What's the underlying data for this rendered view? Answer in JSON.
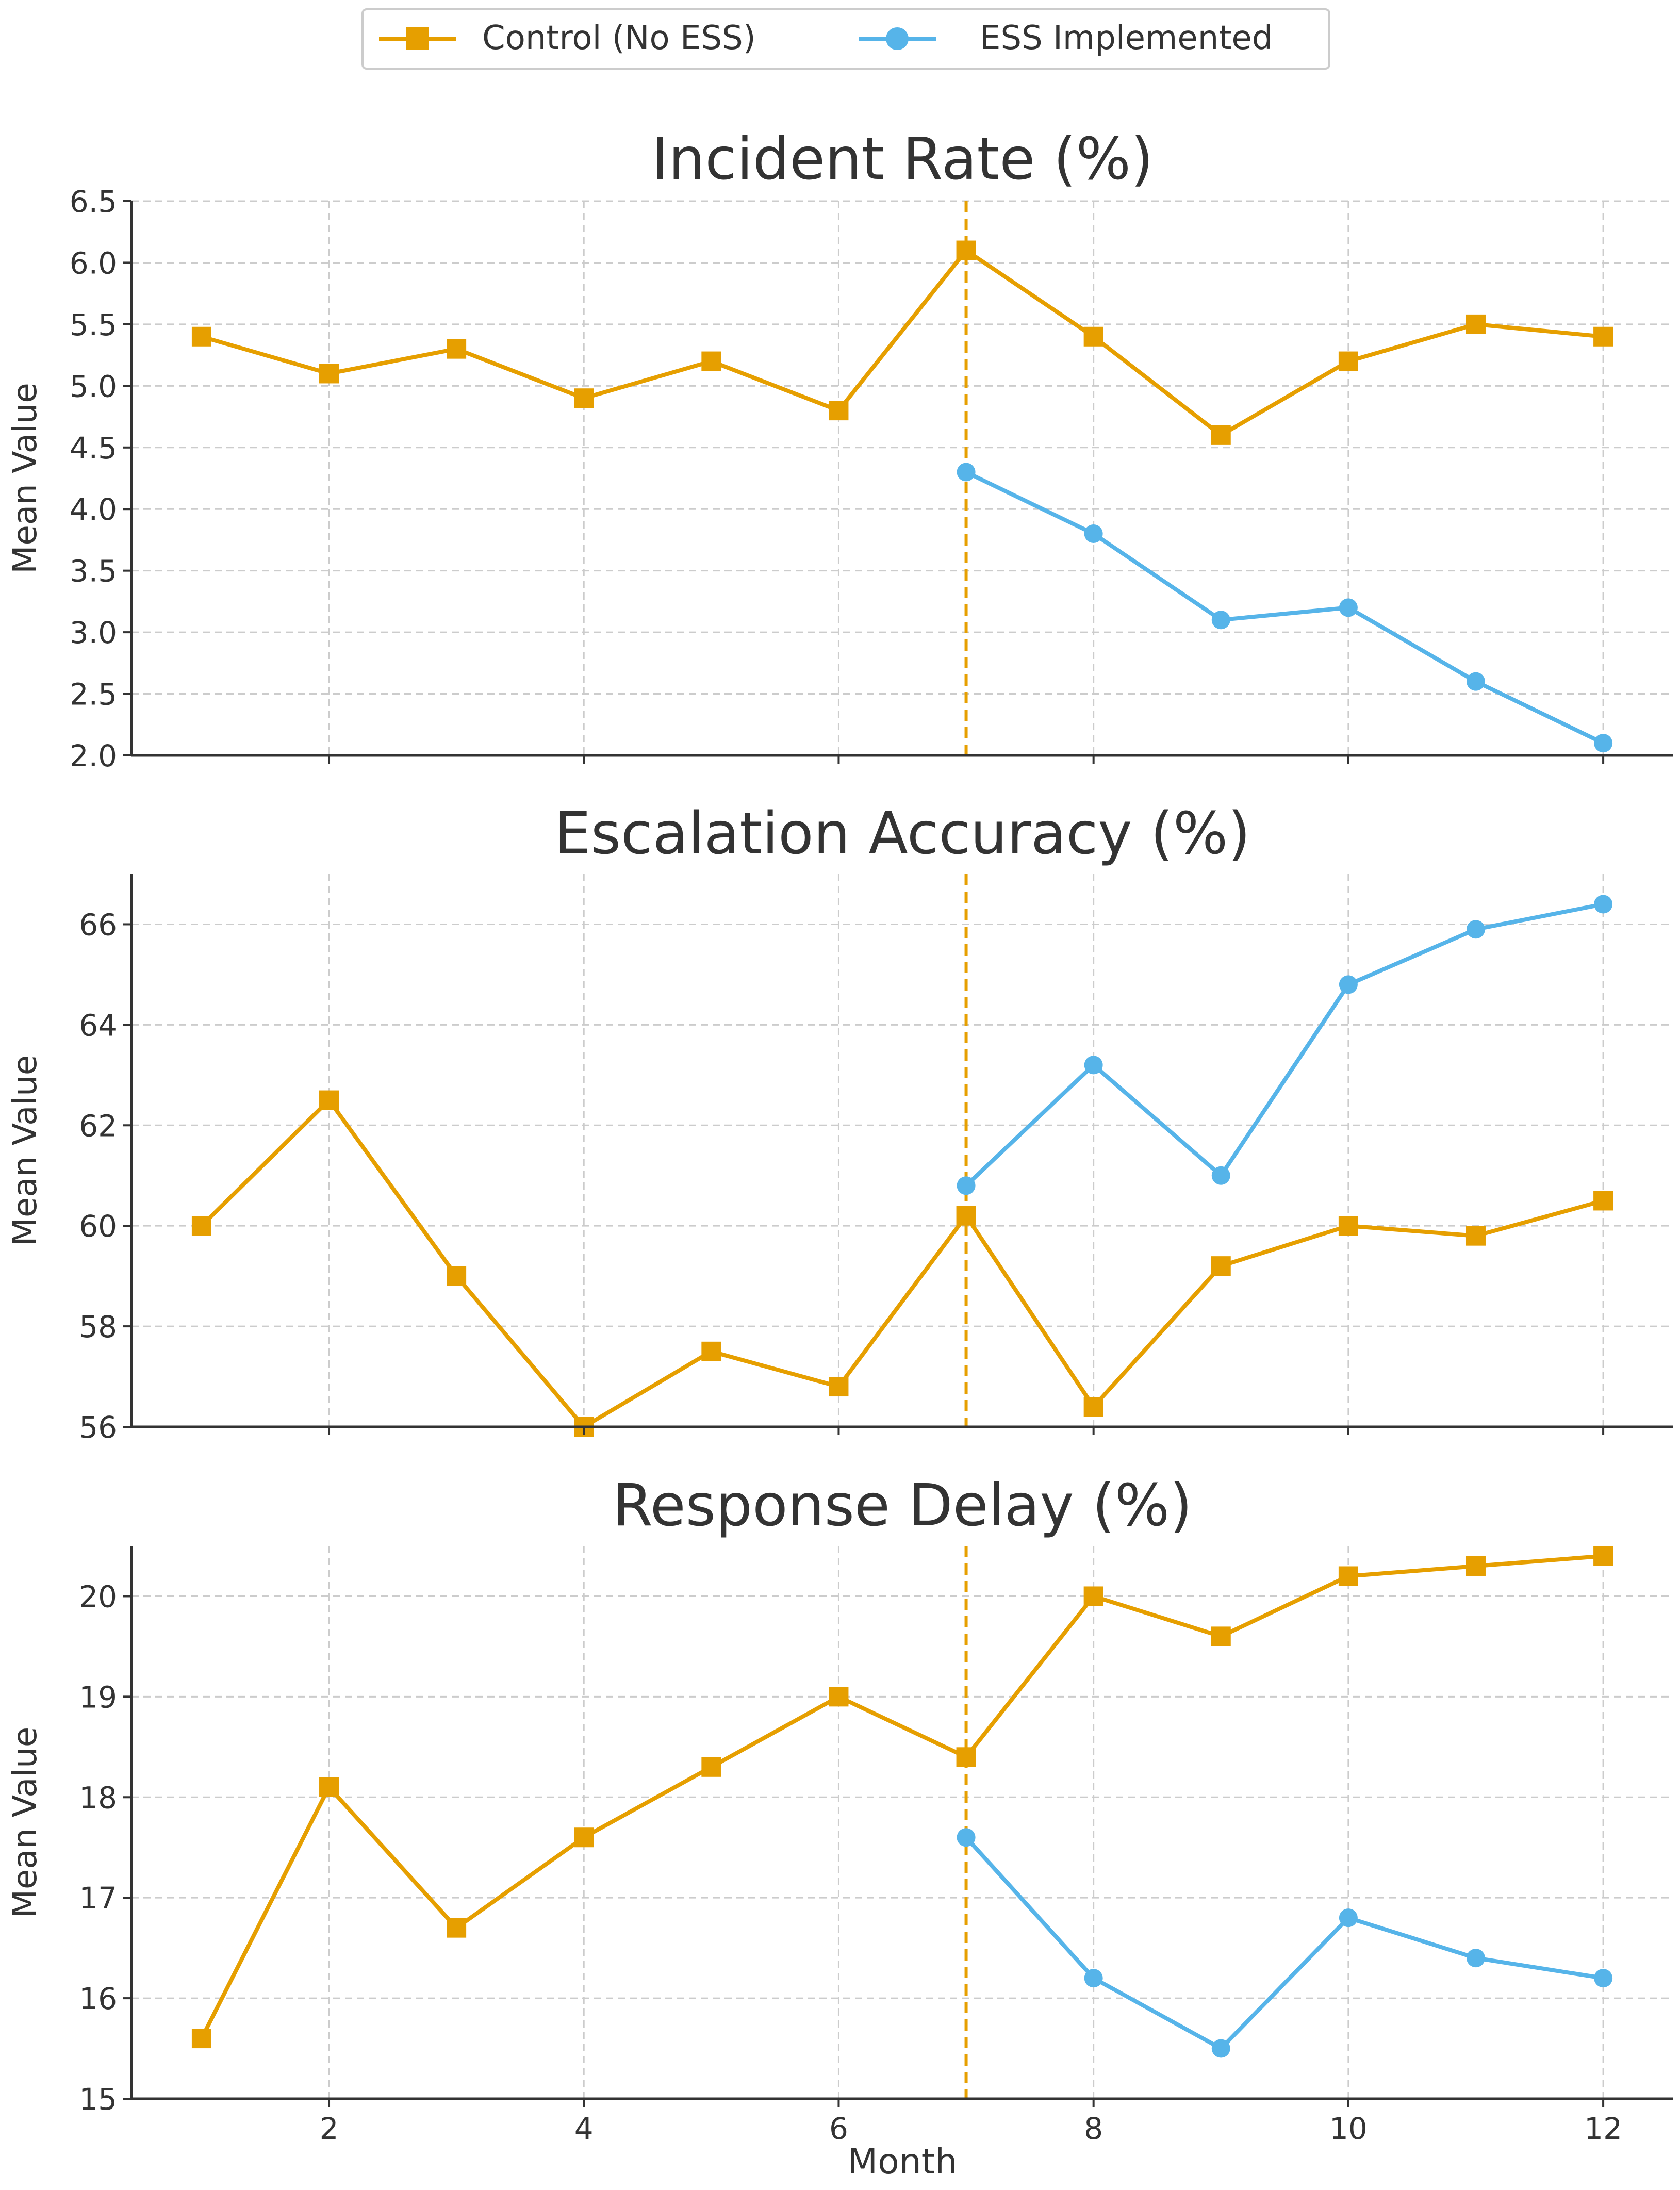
{
  "legend": {
    "items": [
      {
        "label": "Control (No ESS)",
        "series_key": "control"
      },
      {
        "label": "ESS Implemented",
        "series_key": "ess"
      }
    ]
  },
  "colors": {
    "control": "#E69F00",
    "ess": "#56B4E9",
    "vline": "#E69F00",
    "grid": "#cccccc",
    "axis": "#333333"
  },
  "chart_data": [
    {
      "type": "line",
      "title": "Incident Rate (%)",
      "xlabel": "",
      "ylabel": "Mean Value",
      "xlim": [
        0.45,
        12.55
      ],
      "ylim": [
        2.0,
        6.5
      ],
      "yticks": [
        2.0,
        2.5,
        3.0,
        3.5,
        4.0,
        4.5,
        5.0,
        5.5,
        6.0,
        6.5
      ],
      "ytick_labels": [
        "2.0",
        "2.5",
        "3.0",
        "3.5",
        "4.0",
        "4.5",
        "5.0",
        "5.5",
        "6.0",
        "6.5"
      ],
      "xticks": [
        2,
        4,
        6,
        8,
        10,
        12
      ],
      "xtick_labels": [],
      "grid": true,
      "vline_x": 7,
      "series": [
        {
          "key": "control",
          "name": "Control (No ESS)",
          "marker": "square",
          "x": [
            1,
            2,
            3,
            4,
            5,
            6,
            7,
            8,
            9,
            10,
            11,
            12
          ],
          "y": [
            5.4,
            5.1,
            5.3,
            4.9,
            5.2,
            4.8,
            6.1,
            5.4,
            4.6,
            5.2,
            5.5,
            5.4
          ]
        },
        {
          "key": "ess",
          "name": "ESS Implemented",
          "marker": "circle",
          "x": [
            7,
            8,
            9,
            10,
            11,
            12
          ],
          "y": [
            4.3,
            3.8,
            3.1,
            3.2,
            2.6,
            2.1
          ]
        }
      ]
    },
    {
      "type": "line",
      "title": "Escalation Accuracy (%)",
      "xlabel": "",
      "ylabel": "Mean Value",
      "xlim": [
        0.45,
        12.55
      ],
      "ylim": [
        56,
        67
      ],
      "yticks": [
        56,
        58,
        60,
        62,
        64,
        66
      ],
      "ytick_labels": [
        "56",
        "58",
        "60",
        "62",
        "64",
        "66"
      ],
      "xticks": [
        2,
        4,
        6,
        8,
        10,
        12
      ],
      "xtick_labels": [],
      "grid": true,
      "vline_x": 7,
      "series": [
        {
          "key": "control",
          "name": "Control (No ESS)",
          "marker": "square",
          "x": [
            1,
            2,
            3,
            4,
            5,
            6,
            7,
            8,
            9,
            10,
            11,
            12
          ],
          "y": [
            60.0,
            62.5,
            59.0,
            56.0,
            57.5,
            56.8,
            60.2,
            56.4,
            59.2,
            60.0,
            59.8,
            60.5
          ]
        },
        {
          "key": "ess",
          "name": "ESS Implemented",
          "marker": "circle",
          "x": [
            7,
            8,
            9,
            10,
            11,
            12
          ],
          "y": [
            60.8,
            63.2,
            61.0,
            64.8,
            65.9,
            66.4
          ]
        }
      ]
    },
    {
      "type": "line",
      "title": "Response Delay (%)",
      "xlabel": "Month",
      "ylabel": "Mean Value",
      "xlim": [
        0.45,
        12.55
      ],
      "ylim": [
        15,
        20.5
      ],
      "yticks": [
        15,
        16,
        17,
        18,
        19,
        20
      ],
      "ytick_labels": [
        "15",
        "16",
        "17",
        "18",
        "19",
        "20"
      ],
      "xticks": [
        2,
        4,
        6,
        8,
        10,
        12
      ],
      "xtick_labels": [
        "2",
        "4",
        "6",
        "8",
        "10",
        "12"
      ],
      "grid": true,
      "vline_x": 7,
      "series": [
        {
          "key": "control",
          "name": "Control (No ESS)",
          "marker": "square",
          "x": [
            1,
            2,
            3,
            4,
            5,
            6,
            7,
            8,
            9,
            10,
            11,
            12
          ],
          "y": [
            15.6,
            18.1,
            16.7,
            17.6,
            18.3,
            19.0,
            18.4,
            20.0,
            19.6,
            20.2,
            20.3,
            20.4
          ]
        },
        {
          "key": "ess",
          "name": "ESS Implemented",
          "marker": "circle",
          "x": [
            7,
            8,
            9,
            10,
            11,
            12
          ],
          "y": [
            17.6,
            16.2,
            15.5,
            16.8,
            16.4,
            16.2
          ]
        }
      ]
    }
  ]
}
